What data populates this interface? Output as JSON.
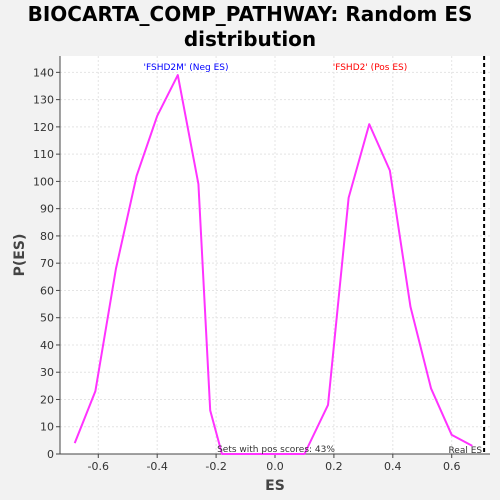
{
  "chart_data": {
    "type": "line",
    "title_line1": "BIOCARTA_COMP_PATHWAY: Random ES",
    "title_line2": "distribution",
    "xlabel": "ES",
    "ylabel": "P(ES)",
    "xlim": [
      -0.73,
      0.73
    ],
    "ylim": [
      0,
      146
    ],
    "xticks": [
      "-0.6",
      "-0.4",
      "-0.2",
      "0.0",
      "0.2",
      "0.4",
      "0.6"
    ],
    "xtick_values": [
      -0.6,
      -0.4,
      -0.2,
      0.0,
      0.2,
      0.4,
      0.6
    ],
    "yticks": [
      0,
      10,
      20,
      30,
      40,
      50,
      60,
      70,
      80,
      90,
      100,
      110,
      120,
      130,
      140
    ],
    "grid": true,
    "series": [
      {
        "color": "#ff33ff",
        "x": [
          -0.68,
          -0.61,
          -0.54,
          -0.47,
          -0.4,
          -0.33,
          -0.26,
          -0.22,
          -0.18,
          -0.14,
          -0.1,
          -0.06,
          -0.02,
          0.02,
          0.06,
          0.1,
          0.18,
          0.25,
          0.32,
          0.39,
          0.46,
          0.53,
          0.6,
          0.67
        ],
        "y": [
          4,
          23,
          68,
          102,
          124,
          139,
          99,
          16,
          0,
          0,
          0,
          0,
          0,
          0,
          0,
          0,
          18,
          94,
          121,
          104,
          54,
          24,
          7,
          3
        ]
      }
    ],
    "real_es": {
      "x": 0.71,
      "label": "Real ES"
    },
    "annotations": {
      "neg_label": "'FSHD2M' (Neg ES)",
      "neg_color": "#0000ff",
      "pos_label": "'FSHD2' (Pos ES)",
      "pos_color": "#ff0000",
      "pos_scores": "Sets with pos scores: 43%"
    }
  }
}
